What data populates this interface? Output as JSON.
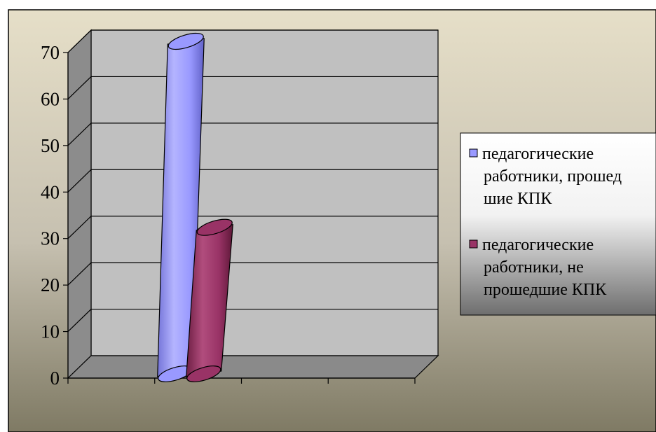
{
  "chart_data": {
    "type": "bar",
    "style": "3d-cylinder",
    "categories": [
      ""
    ],
    "series": [
      {
        "name": "педагогические работники, прошедшие КПК",
        "values": [
          70
        ],
        "color": "#9999ff"
      },
      {
        "name": "педагогические работники, не прошедшие КПК",
        "values": [
          30
        ],
        "color": "#993366"
      }
    ],
    "ylim": [
      0,
      70
    ],
    "yticks": [
      "0",
      "10",
      "20",
      "30",
      "40",
      "50",
      "60",
      "70"
    ],
    "grid": true,
    "legend_position": "right",
    "legend_lines": [
      [
        "педагогические",
        "работники, прошед",
        "шие КПК"
      ],
      [
        "педагогические",
        "работники, не",
        "прошедшие КПК"
      ]
    ]
  }
}
